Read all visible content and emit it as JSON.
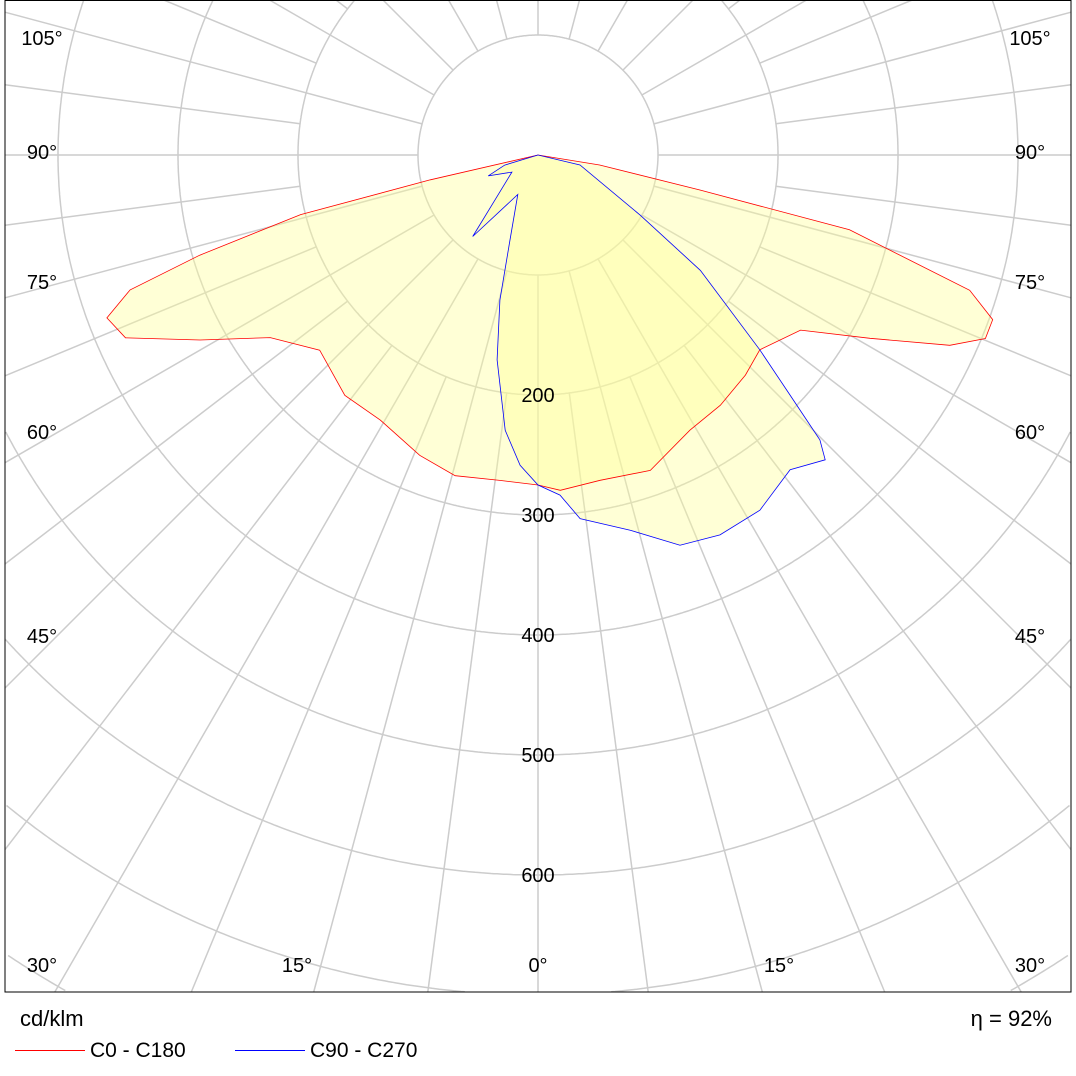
{
  "chart_data": {
    "type": "polar",
    "unit_label": "cd/klm",
    "efficiency_label": "η = 92%",
    "radial_ticks": [
      200,
      300,
      400,
      500,
      600
    ],
    "radial_step": 100,
    "angle_labels_side": [
      "105°",
      "90°",
      "75°",
      "60°",
      "45°",
      "30°"
    ],
    "angle_labels_bottom": [
      "30°",
      "15°",
      "0°",
      "15°",
      "30°"
    ],
    "grid": true,
    "colors": {
      "c0": "#ff0000",
      "c90": "#0000ff",
      "fill": "#ffff99",
      "grid": "#cccccc"
    },
    "series": [
      {
        "name": "C0 - C180",
        "color": "#ff0000",
        "points": [
          [
            -90,
            0
          ],
          [
            -77,
            92
          ],
          [
            -75.9,
            204
          ],
          [
            -73.5,
            294
          ],
          [
            -71.7,
            358
          ],
          [
            -69.3,
            384
          ],
          [
            -66.1,
            376
          ],
          [
            -61.3,
            321
          ],
          [
            -55.7,
            270
          ],
          [
            -48.2,
            244
          ],
          [
            -38.8,
            257
          ],
          [
            -30.8,
            257
          ],
          [
            -21.5,
            269
          ],
          [
            -14.5,
            276
          ],
          [
            -6.7,
            273
          ],
          [
            0,
            275
          ],
          [
            3.8,
            280
          ],
          [
            10.8,
            276
          ],
          [
            19.6,
            279
          ],
          [
            28.9,
            262
          ],
          [
            36.1,
            258
          ],
          [
            43.3,
            252
          ],
          [
            48.7,
            246
          ],
          [
            56.3,
            263
          ],
          [
            61.1,
            316
          ],
          [
            65.2,
            378
          ],
          [
            67.7,
            403
          ],
          [
            70.1,
            403
          ],
          [
            72.6,
            377
          ],
          [
            76.5,
            267
          ],
          [
            77.8,
            138
          ],
          [
            80.8,
            52
          ],
          [
            90,
            0
          ]
        ]
      },
      {
        "name": "C90 - C270",
        "color": "#0000ff",
        "points": [
          [
            -90,
            0
          ],
          [
            -73.1,
            29
          ],
          [
            -67.2,
            45
          ],
          [
            -56.8,
            26
          ],
          [
            -43.7,
            52
          ],
          [
            -38.7,
            87
          ],
          [
            -27.1,
            37
          ],
          [
            -18.2,
            75
          ],
          [
            -14.7,
            125
          ],
          [
            -11.3,
            174
          ],
          [
            -6.8,
            231
          ],
          [
            -3.3,
            259
          ],
          [
            0,
            275
          ],
          [
            3.7,
            284
          ],
          [
            6.6,
            305
          ],
          [
            13.8,
            322
          ],
          [
            20,
            346
          ],
          [
            25.6,
            351
          ],
          [
            32,
            349
          ],
          [
            38.7,
            336
          ],
          [
            43.3,
            349
          ],
          [
            44.7,
            334
          ],
          [
            46.4,
            290
          ],
          [
            48.7,
            246
          ],
          [
            54.6,
            166
          ],
          [
            59.5,
            99
          ],
          [
            76.6,
            36
          ],
          [
            90,
            0
          ]
        ]
      }
    ]
  }
}
